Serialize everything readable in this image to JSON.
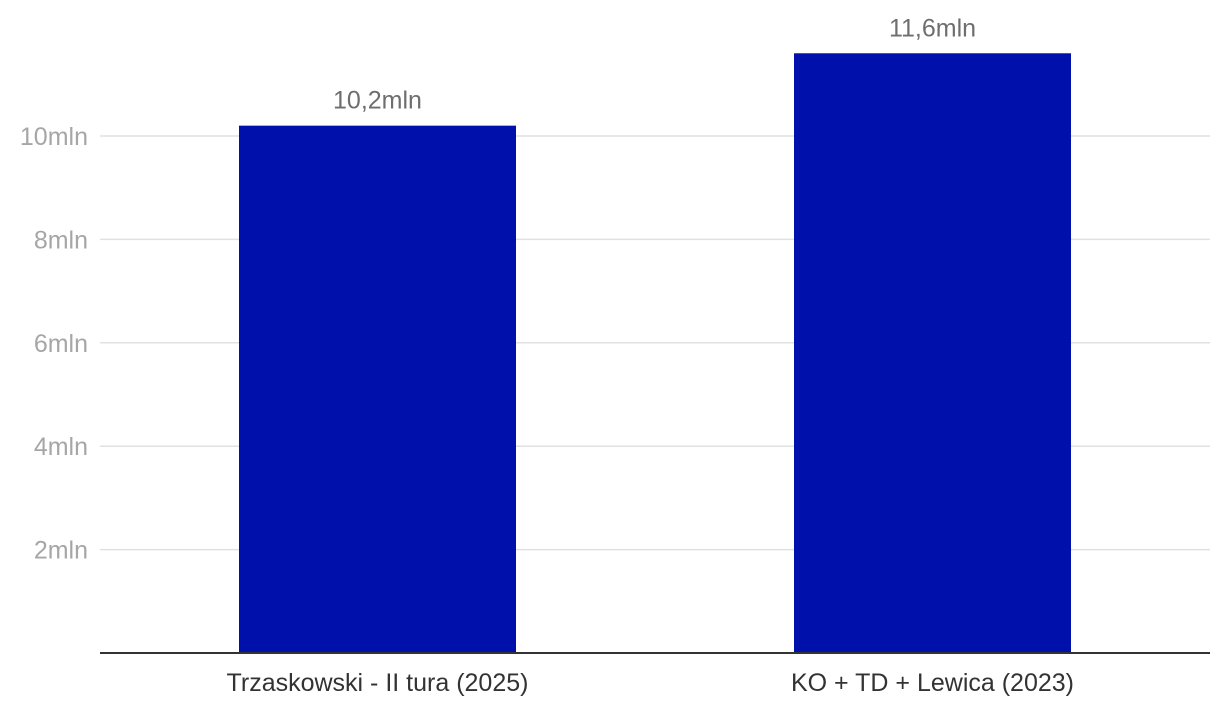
{
  "chart_data": {
    "type": "bar",
    "categories": [
      "Trzaskowski - II tura (2025)",
      "KO + TD + Lewica (2023)"
    ],
    "values": [
      10.2,
      11.6
    ],
    "data_labels": [
      "10,2mln",
      "11,6mln"
    ],
    "y_ticks": [
      2,
      4,
      6,
      8,
      10
    ],
    "y_tick_labels": [
      "2mln",
      "4mln",
      "6mln",
      "8mln",
      "10mln"
    ],
    "ylim": [
      0,
      11.6
    ],
    "grid": true,
    "bar_color": "#0010aa",
    "grid_color": "#e1e1e1",
    "axis_color": "#333333"
  }
}
